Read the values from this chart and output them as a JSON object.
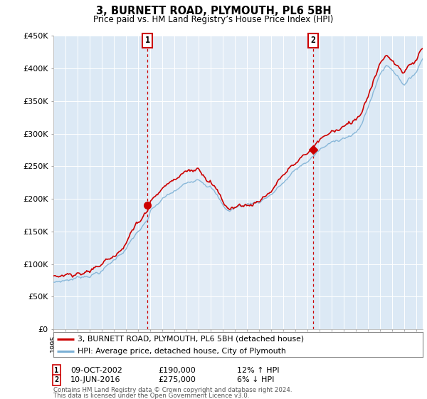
{
  "title": "3, BURNETT ROAD, PLYMOUTH, PL6 5BH",
  "subtitle": "Price paid vs. HM Land Registry’s House Price Index (HPI)",
  "legend_line1": "3, BURNETT ROAD, PLYMOUTH, PL6 5BH (detached house)",
  "legend_line2": "HPI: Average price, detached house, City of Plymouth",
  "footnote1": "Contains HM Land Registry data © Crown copyright and database right 2024.",
  "footnote2": "This data is licensed under the Open Government Licence v3.0.",
  "sale1_date": "09-OCT-2002",
  "sale1_price": "£190,000",
  "sale1_hpi": "12% ↑ HPI",
  "sale2_date": "10-JUN-2016",
  "sale2_price": "£275,000",
  "sale2_hpi": "6% ↓ HPI",
  "red_line_color": "#cc0000",
  "blue_line_color": "#7aafd4",
  "shade_color": "#d8e8f4",
  "bg_color": "#dce9f5",
  "grid_color": "#c8d8e8",
  "ylim_min": 0,
  "ylim_max": 450000,
  "yticks": [
    0,
    50000,
    100000,
    150000,
    200000,
    250000,
    300000,
    350000,
    400000,
    450000
  ],
  "ytick_labels": [
    "£0",
    "£50K",
    "£100K",
    "£150K",
    "£200K",
    "£250K",
    "£300K",
    "£350K",
    "£400K",
    "£450K"
  ],
  "sale1_x": 2002.78,
  "sale1_y": 190000,
  "sale2_x": 2016.44,
  "sale2_y": 275000,
  "xmin": 1995.0,
  "xmax": 2025.5
}
